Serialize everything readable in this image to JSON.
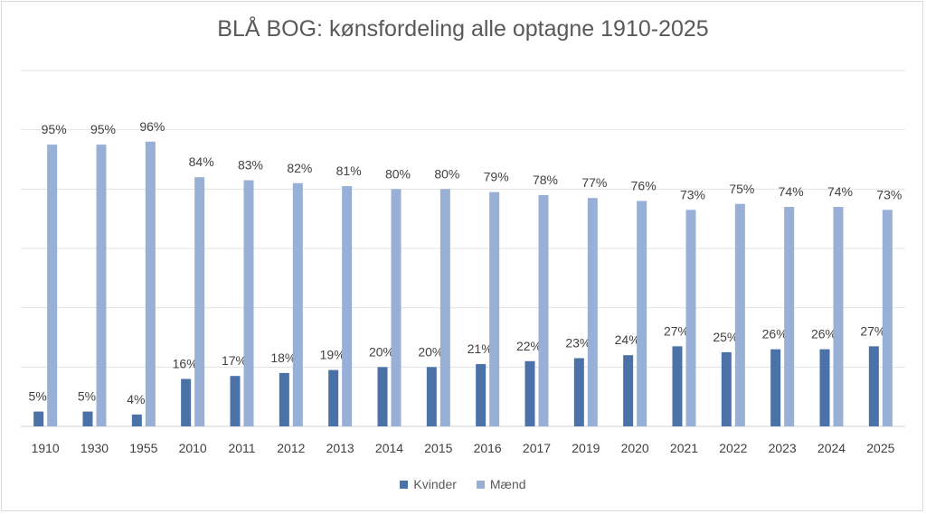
{
  "chart_data": {
    "type": "bar",
    "title": "BLÅ BOG: kønsfordeling alle optagne 1910-2025",
    "categories": [
      "1910",
      "1930",
      "1955",
      "2010",
      "2011",
      "2012",
      "2013",
      "2014",
      "2015",
      "2016",
      "2017",
      "2019",
      "2020",
      "2021",
      "2022",
      "2023",
      "2024",
      "2025"
    ],
    "series": [
      {
        "name": "Kvinder",
        "color": "#4a72a8",
        "values": [
          0.05,
          0.05,
          0.04,
          0.16,
          0.17,
          0.18,
          0.19,
          0.2,
          0.2,
          0.21,
          0.22,
          0.23,
          0.24,
          0.27,
          0.25,
          0.26,
          0.26,
          0.27
        ],
        "labels": [
          "5%",
          "5%",
          "4%",
          "16%",
          "17%",
          "18%",
          "19%",
          "20%",
          "20%",
          "21%",
          "22%",
          "23%",
          "24%",
          "27%",
          "25%",
          "26%",
          "26%",
          "27%"
        ]
      },
      {
        "name": "Mænd",
        "color": "#98afd6",
        "values": [
          0.95,
          0.95,
          0.96,
          0.84,
          0.83,
          0.82,
          0.81,
          0.8,
          0.8,
          0.79,
          0.78,
          0.77,
          0.76,
          0.73,
          0.75,
          0.74,
          0.74,
          0.73
        ],
        "labels": [
          "95%",
          "95%",
          "96%",
          "84%",
          "83%",
          "82%",
          "81%",
          "80%",
          "80%",
          "79%",
          "78%",
          "77%",
          "76%",
          "73%",
          "75%",
          "74%",
          "74%",
          "73%"
        ]
      }
    ],
    "ylim": [
      0,
      1.2
    ],
    "grid": true,
    "legend_position": "bottom"
  }
}
